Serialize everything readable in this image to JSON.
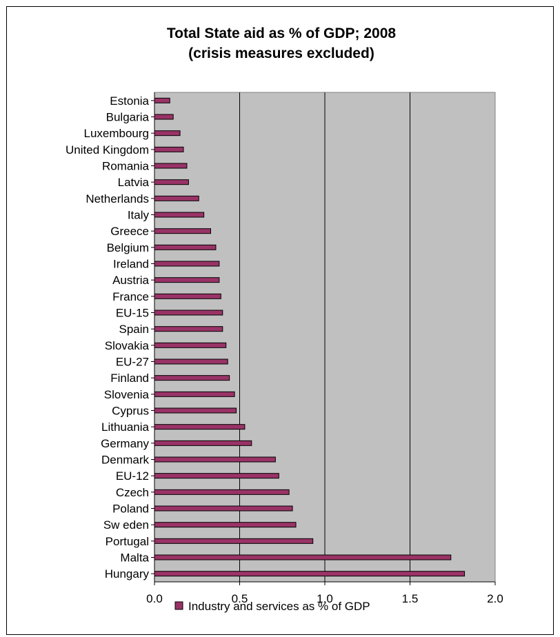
{
  "chart_data": {
    "type": "bar",
    "orientation": "horizontal",
    "title": [
      "Total State aid as % of GDP; 2008",
      "(crisis measures excluded)"
    ],
    "xlabel": "",
    "ylabel": "",
    "xlim": [
      0,
      2
    ],
    "x_ticks": [
      "0.0",
      "0.5",
      "1.0",
      "1.5",
      "2.0"
    ],
    "grid": "vertical",
    "legend_position": "bottom",
    "categories": [
      "Estonia",
      "Bulgaria",
      "Luxembourg",
      "United Kingdom",
      "Romania",
      "Latvia",
      "Netherlands",
      "Italy",
      "Greece",
      "Belgium",
      "Ireland",
      "Austria",
      "France",
      "EU-15",
      "Spain",
      "Slovakia",
      "EU-27",
      "Finland",
      "Slovenia",
      "Cyprus",
      "Lithuania",
      "Germany",
      "Denmark",
      "EU-12",
      "Czech",
      "Poland",
      "Sw eden",
      "Portugal",
      "Malta",
      "Hungary"
    ],
    "series": [
      {
        "name": "Industry and services as % of GDP",
        "values": [
          0.09,
          0.11,
          0.15,
          0.17,
          0.19,
          0.2,
          0.26,
          0.29,
          0.33,
          0.36,
          0.38,
          0.38,
          0.39,
          0.4,
          0.4,
          0.42,
          0.43,
          0.44,
          0.47,
          0.48,
          0.53,
          0.57,
          0.71,
          0.73,
          0.79,
          0.81,
          0.83,
          0.93,
          1.74,
          1.82
        ]
      }
    ],
    "colors": {
      "bar_fill": "#993366",
      "bar_stroke": "#000000",
      "plot_background": "#c0c0c0",
      "gridline": "#000000"
    }
  }
}
